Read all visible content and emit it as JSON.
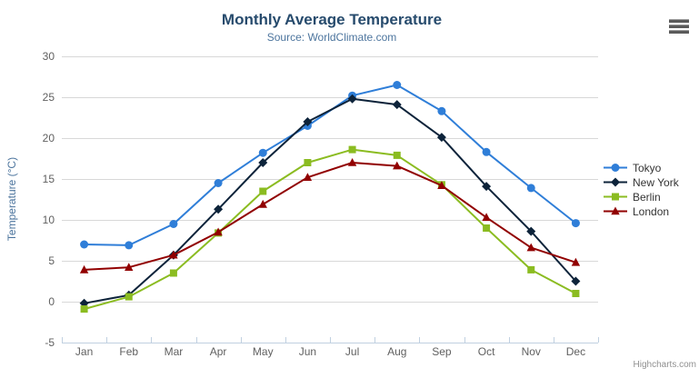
{
  "chart": {
    "title": "Monthly Average Temperature",
    "subtitle": "Source: WorldClimate.com",
    "credits_label": "Highcharts.com",
    "export_menu_icon": "hamburger-icon"
  },
  "chart_data": {
    "type": "line",
    "title": "Monthly Average Temperature",
    "subtitle": "Source: WorldClimate.com",
    "xlabel": "",
    "ylabel": "Temperature (°C)",
    "categories": [
      "Jan",
      "Feb",
      "Mar",
      "Apr",
      "May",
      "Jun",
      "Jul",
      "Aug",
      "Sep",
      "Oct",
      "Nov",
      "Dec"
    ],
    "ylim": [
      -5,
      30
    ],
    "yticks": [
      -5,
      0,
      5,
      10,
      15,
      20,
      25,
      30
    ],
    "grid": true,
    "legend_position": "right",
    "series": [
      {
        "name": "Tokyo",
        "color": "#2f7ed8",
        "marker": "circle",
        "values": [
          7.0,
          6.9,
          9.5,
          14.5,
          18.2,
          21.5,
          25.2,
          26.5,
          23.3,
          18.3,
          13.9,
          9.6
        ]
      },
      {
        "name": "New York",
        "color": "#0d233a",
        "marker": "diamond",
        "values": [
          -0.2,
          0.8,
          5.7,
          11.3,
          17.0,
          22.0,
          24.8,
          24.1,
          20.1,
          14.1,
          8.6,
          2.5
        ]
      },
      {
        "name": "Berlin",
        "color": "#8bbc21",
        "marker": "square",
        "values": [
          -0.9,
          0.6,
          3.5,
          8.4,
          13.5,
          17.0,
          18.6,
          17.9,
          14.3,
          9.0,
          3.9,
          1.0
        ]
      },
      {
        "name": "London",
        "color": "#910000",
        "marker": "triangle",
        "values": [
          3.9,
          4.2,
          5.7,
          8.5,
          11.9,
          15.2,
          17.0,
          16.6,
          14.2,
          10.3,
          6.6,
          4.8
        ]
      }
    ]
  },
  "colors": {
    "title": "#274b6d",
    "subtitle": "#4d759e",
    "axis_label": "#606060",
    "axis_line": "#c0d0e0",
    "gridline": "#d8d8d8",
    "legend_text": "#333333",
    "credits": "#909090",
    "background": "#ffffff"
  }
}
